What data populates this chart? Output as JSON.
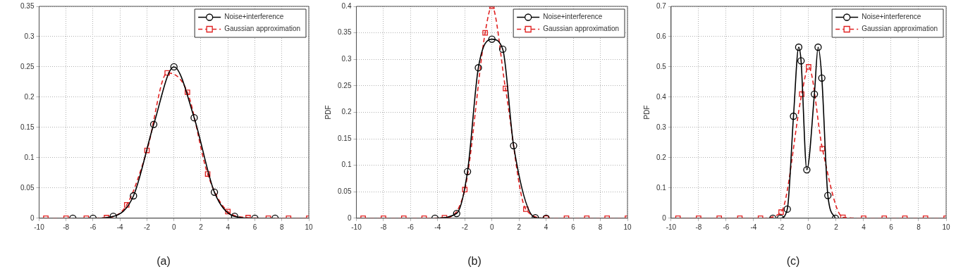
{
  "chart_data": [
    {
      "type": "line",
      "title": "(a)",
      "legend": "top right",
      "grid": true,
      "xlim": [
        -10,
        10
      ],
      "xticks": [
        -10,
        -8,
        -6,
        -4,
        -2,
        0,
        2,
        4,
        6,
        8,
        10
      ],
      "ylim": [
        0,
        0.35
      ],
      "yticks": [
        0,
        0.05,
        0.1,
        0.15,
        0.2,
        0.25,
        0.3,
        0.35
      ],
      "series": [
        {
          "name": "Noise+interference",
          "color": "#000000",
          "marker": "circle",
          "line_style": "solid",
          "x": [
            -7.5,
            -6,
            -4.5,
            -3,
            -1.5,
            0,
            1.5,
            3,
            4.5,
            6,
            7.5
          ],
          "values": [
            0,
            0,
            0.003,
            0.037,
            0.155,
            0.25,
            0.166,
            0.043,
            0.003,
            0,
            0
          ]
        },
        {
          "name": "Gaussian approximation",
          "color": "#e02020",
          "marker": "square",
          "line_style": "dashed",
          "x": [
            -9.5,
            -8,
            -6.5,
            -5,
            -3.5,
            -2,
            -0.5,
            1,
            2.5,
            4,
            5.5,
            7,
            8.5,
            10
          ],
          "values": [
            0,
            0,
            0,
            0.001,
            0.022,
            0.112,
            0.24,
            0.208,
            0.073,
            0.011,
            0.001,
            0,
            0,
            0
          ]
        }
      ]
    },
    {
      "type": "line",
      "title": "(b)",
      "ylabel": "PDF",
      "legend": "top right",
      "grid": true,
      "xlim": [
        -10,
        10
      ],
      "xticks": [
        -10,
        -8,
        -6,
        -4,
        -2,
        0,
        2,
        4,
        6,
        8,
        10
      ],
      "ylim": [
        0,
        0.4
      ],
      "yticks": [
        0,
        0.05,
        0.1,
        0.15,
        0.2,
        0.25,
        0.3,
        0.35,
        0.4
      ],
      "series": [
        {
          "name": "Noise+interference",
          "color": "#000000",
          "marker": "circle",
          "line_style": "solid",
          "x": [
            -4.2,
            -2.6,
            -1.8,
            -1,
            0,
            0.8,
            1.6,
            3.2,
            4
          ],
          "values": [
            0,
            0.009,
            0.088,
            0.284,
            0.338,
            0.319,
            0.137,
            0.001,
            0
          ]
        },
        {
          "name": "Gaussian approximation",
          "color": "#e02020",
          "marker": "square",
          "line_style": "dashed",
          "x": [
            -9.5,
            -8,
            -6.5,
            -5,
            -3.5,
            -2,
            -0.5,
            0,
            1,
            2.5,
            4,
            5.5,
            7,
            8.5,
            10
          ],
          "values": [
            0,
            0,
            0,
            0,
            0.001,
            0.054,
            0.35,
            0.4,
            0.245,
            0.017,
            0,
            0,
            0,
            0,
            0
          ]
        }
      ]
    },
    {
      "type": "line",
      "title": "(c)",
      "ylabel": "PDF",
      "legend": "top right",
      "grid": true,
      "xlim": [
        -10,
        10
      ],
      "xticks": [
        -10,
        -8,
        -6,
        -4,
        -2,
        0,
        2,
        4,
        6,
        8,
        10
      ],
      "ylim": [
        0,
        0.7
      ],
      "yticks": [
        0,
        0.1,
        0.2,
        0.3,
        0.4,
        0.5,
        0.6,
        0.7
      ],
      "series": [
        {
          "name": "Noise+interference",
          "color": "#000000",
          "marker": "circle",
          "line_style": "solid",
          "x": [
            -2.6,
            -2.05,
            -1.55,
            -1.1,
            -0.72,
            -0.55,
            -0.13,
            0.42,
            0.69,
            0.96,
            1.4,
            1.95
          ],
          "values": [
            0,
            0,
            0.03,
            0.337,
            0.565,
            0.52,
            0.16,
            0.41,
            0.565,
            0.463,
            0.075,
            0
          ]
        },
        {
          "name": "Gaussian approximation",
          "color": "#e02020",
          "marker": "square",
          "line_style": "dashed",
          "x": [
            -9.5,
            -8,
            -6.5,
            -5,
            -3.5,
            -2,
            -0.5,
            0,
            1,
            2.5,
            4,
            5.5,
            7,
            8.5,
            10
          ],
          "values": [
            0,
            0,
            0,
            0,
            0,
            0.02,
            0.41,
            0.5,
            0.23,
            0.003,
            0,
            0,
            0,
            0,
            0
          ]
        }
      ]
    }
  ]
}
